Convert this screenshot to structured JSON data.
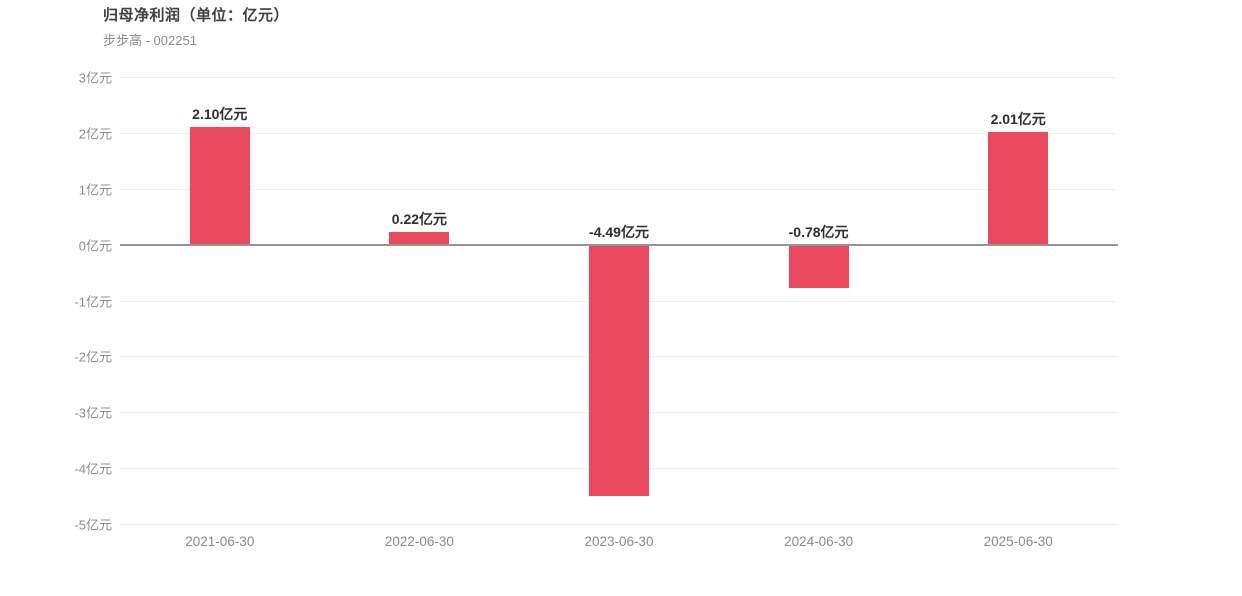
{
  "header": {
    "title": "归母净利润（单位：亿元）",
    "subtitle": "步步高 - 002251"
  },
  "colors": {
    "bar": "#e8495f",
    "grid_line": "#ededf3",
    "zero_line": "#949494",
    "title_text": "#404040",
    "subtitle_text": "#8c8c8c",
    "tick_text": "#8c8c8c",
    "value_label_text": "#2e2e2e",
    "background": "#ffffff"
  },
  "chart_data": {
    "type": "bar",
    "title": "归母净利润（单位：亿元）",
    "subtitle": "步步高 - 002251",
    "categories": [
      "2021-06-30",
      "2022-06-30",
      "2023-06-30",
      "2024-06-30",
      "2025-06-30"
    ],
    "values": [
      2.1,
      0.22,
      -4.49,
      -0.78,
      2.01
    ],
    "value_labels": [
      "2.10亿元",
      "0.22亿元",
      "-4.49亿元",
      "-0.78亿元",
      "2.01亿元"
    ],
    "unit": "亿元",
    "ylabel": "",
    "xlabel": "",
    "ylim": [
      -5,
      3
    ],
    "ytick_step": 1,
    "ytick_labels": [
      "3亿元",
      "2亿元",
      "1亿元",
      "0亿元",
      "-1亿元",
      "-2亿元",
      "-3亿元",
      "-4亿元",
      "-5亿元"
    ],
    "grid": true,
    "legend_position": "none"
  }
}
